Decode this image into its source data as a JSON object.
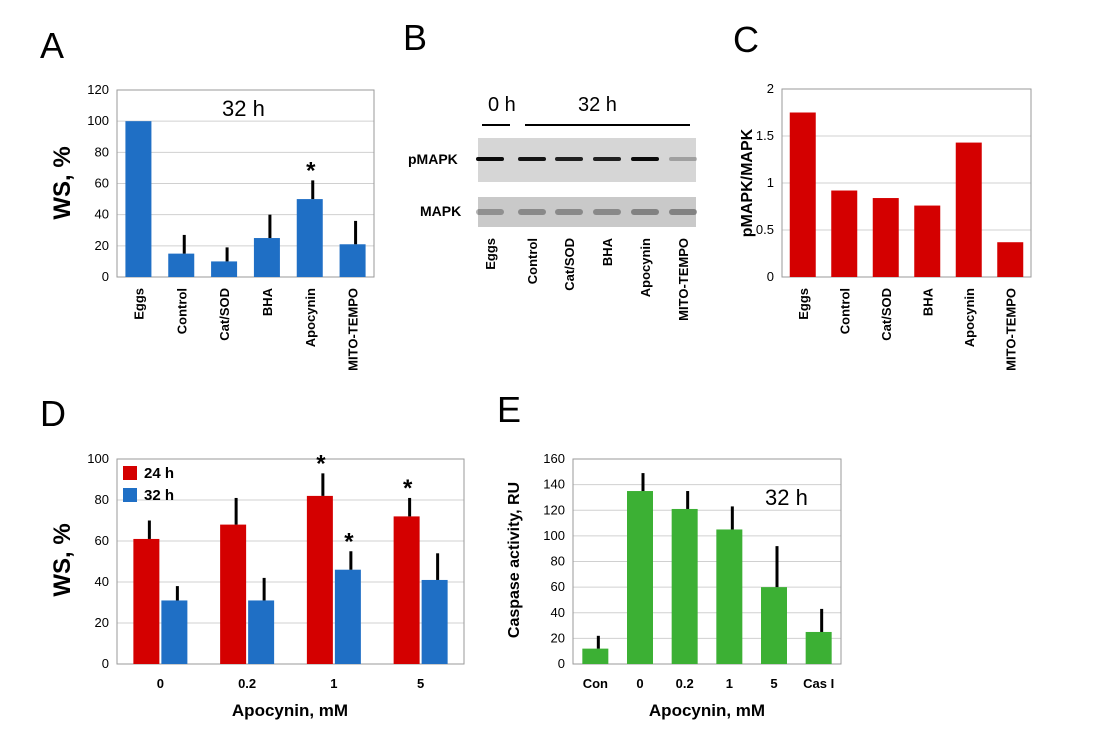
{
  "panels": {
    "A": "A",
    "B": "B",
    "C": "C",
    "D": "D",
    "E": "E"
  },
  "blot": {
    "time_0h": "0 h",
    "time_32h": "32 h",
    "row_pmapk": "pMAPK",
    "row_mapk": "MAPK",
    "lanes": [
      "Eggs",
      "Control",
      "Cat/SOD",
      "BHA",
      "Apocynin",
      "MITO-TEMPO"
    ]
  },
  "chart_data": [
    {
      "id": "A",
      "type": "bar",
      "annotation": "32 h",
      "ylabel": "WS, %",
      "xlabel": "",
      "ylim": [
        0,
        120
      ],
      "yticks": [
        0,
        20,
        40,
        60,
        80,
        100,
        120
      ],
      "grid": true,
      "color": "#1f6fc5",
      "categories": [
        "Eggs",
        "Control",
        "Cat/SOD",
        "BHA",
        "Apocynin",
        "MITO-TEMPO"
      ],
      "values": [
        100,
        15,
        10,
        25,
        50,
        21
      ],
      "errors": [
        0,
        12,
        9,
        15,
        12,
        15
      ],
      "significance": [
        "",
        "",
        "",
        "",
        "*",
        ""
      ]
    },
    {
      "id": "C",
      "type": "bar",
      "ylabel": "pMAPK/MAPK",
      "xlabel": "",
      "ylim": [
        0,
        2
      ],
      "yticks": [
        "0",
        "0.5",
        "1",
        "1.5",
        "2"
      ],
      "grid": true,
      "color": "#d40000",
      "categories": [
        "Eggs",
        "Control",
        "Cat/SOD",
        "BHA",
        "Apocynin",
        "MITO-TEMPO"
      ],
      "values": [
        1.75,
        0.92,
        0.84,
        0.76,
        1.43,
        0.37
      ]
    },
    {
      "id": "D",
      "type": "bar",
      "ylabel": "WS, %",
      "xlabel": "Apocynin, mM",
      "ylim": [
        0,
        100
      ],
      "yticks": [
        0,
        20,
        40,
        60,
        80,
        100
      ],
      "grid": true,
      "legend": "top-left",
      "categories": [
        "0",
        "0.2",
        "1",
        "5"
      ],
      "series": [
        {
          "name": "24 h",
          "color": "#d40000",
          "values": [
            61,
            68,
            82,
            72
          ],
          "errors": [
            9,
            13,
            11,
            9
          ],
          "significance": [
            "",
            "",
            "*",
            "*"
          ]
        },
        {
          "name": "32 h",
          "color": "#1f6fc5",
          "values": [
            31,
            31,
            46,
            41
          ],
          "errors": [
            7,
            11,
            9,
            13
          ],
          "significance": [
            "",
            "",
            "*",
            ""
          ]
        }
      ]
    },
    {
      "id": "E",
      "type": "bar",
      "annotation": "32 h",
      "ylabel": "Caspase activity, RU",
      "xlabel": "Apocynin, mM",
      "ylim": [
        0,
        160
      ],
      "yticks": [
        0,
        20,
        40,
        60,
        80,
        100,
        120,
        140,
        160
      ],
      "grid": true,
      "color": "#3cb034",
      "categories": [
        "Con",
        "0",
        "0.2",
        "1",
        "5",
        "Cas I"
      ],
      "values": [
        12,
        135,
        121,
        105,
        60,
        25
      ],
      "errors": [
        10,
        14,
        14,
        18,
        32,
        18
      ]
    }
  ]
}
